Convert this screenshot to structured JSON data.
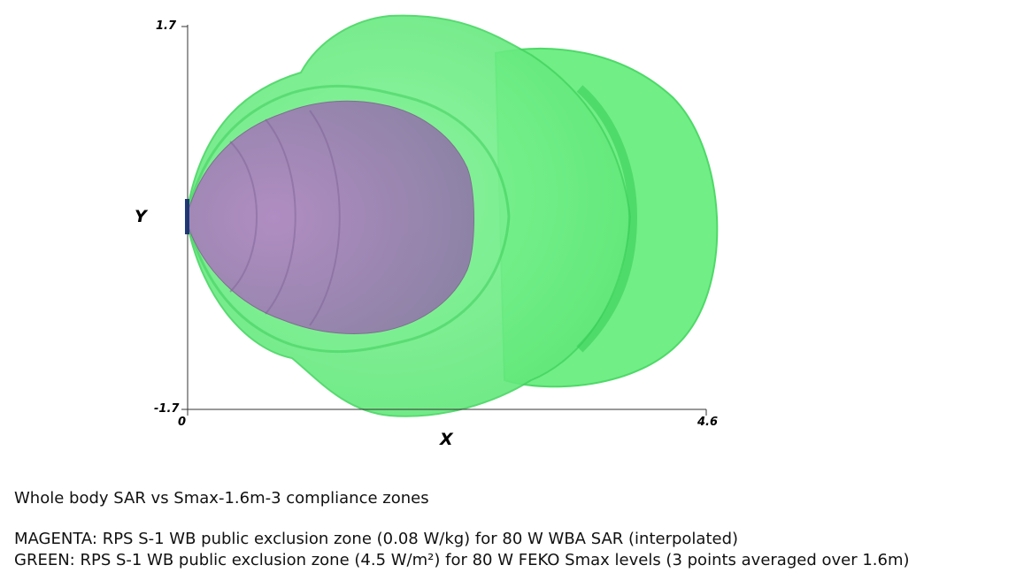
{
  "axes": {
    "x_label": "X",
    "y_label": "Y",
    "x_ticks": {
      "min": "0",
      "max": "4.6"
    },
    "y_ticks": {
      "max": "1.7",
      "min": "-1.7"
    }
  },
  "captions": {
    "title": "Whole body SAR vs Smax-1.6m-3 compliance zones",
    "magenta_line": "MAGENTA: RPS S-1 WB public exclusion zone (0.08 W/kg) for 80 W WBA SAR (interpolated)",
    "green_line": "GREEN: RPS S-1 WB public exclusion zone (4.5 W/m²) for 80 W FEKO Smax levels (3 points averaged over 1.6m)"
  },
  "colors": {
    "green_zone": "#5fe878",
    "green_edge": "#3cd25a",
    "magenta_zone": "#9a78b4",
    "antenna": "#1a3a8a"
  }
}
